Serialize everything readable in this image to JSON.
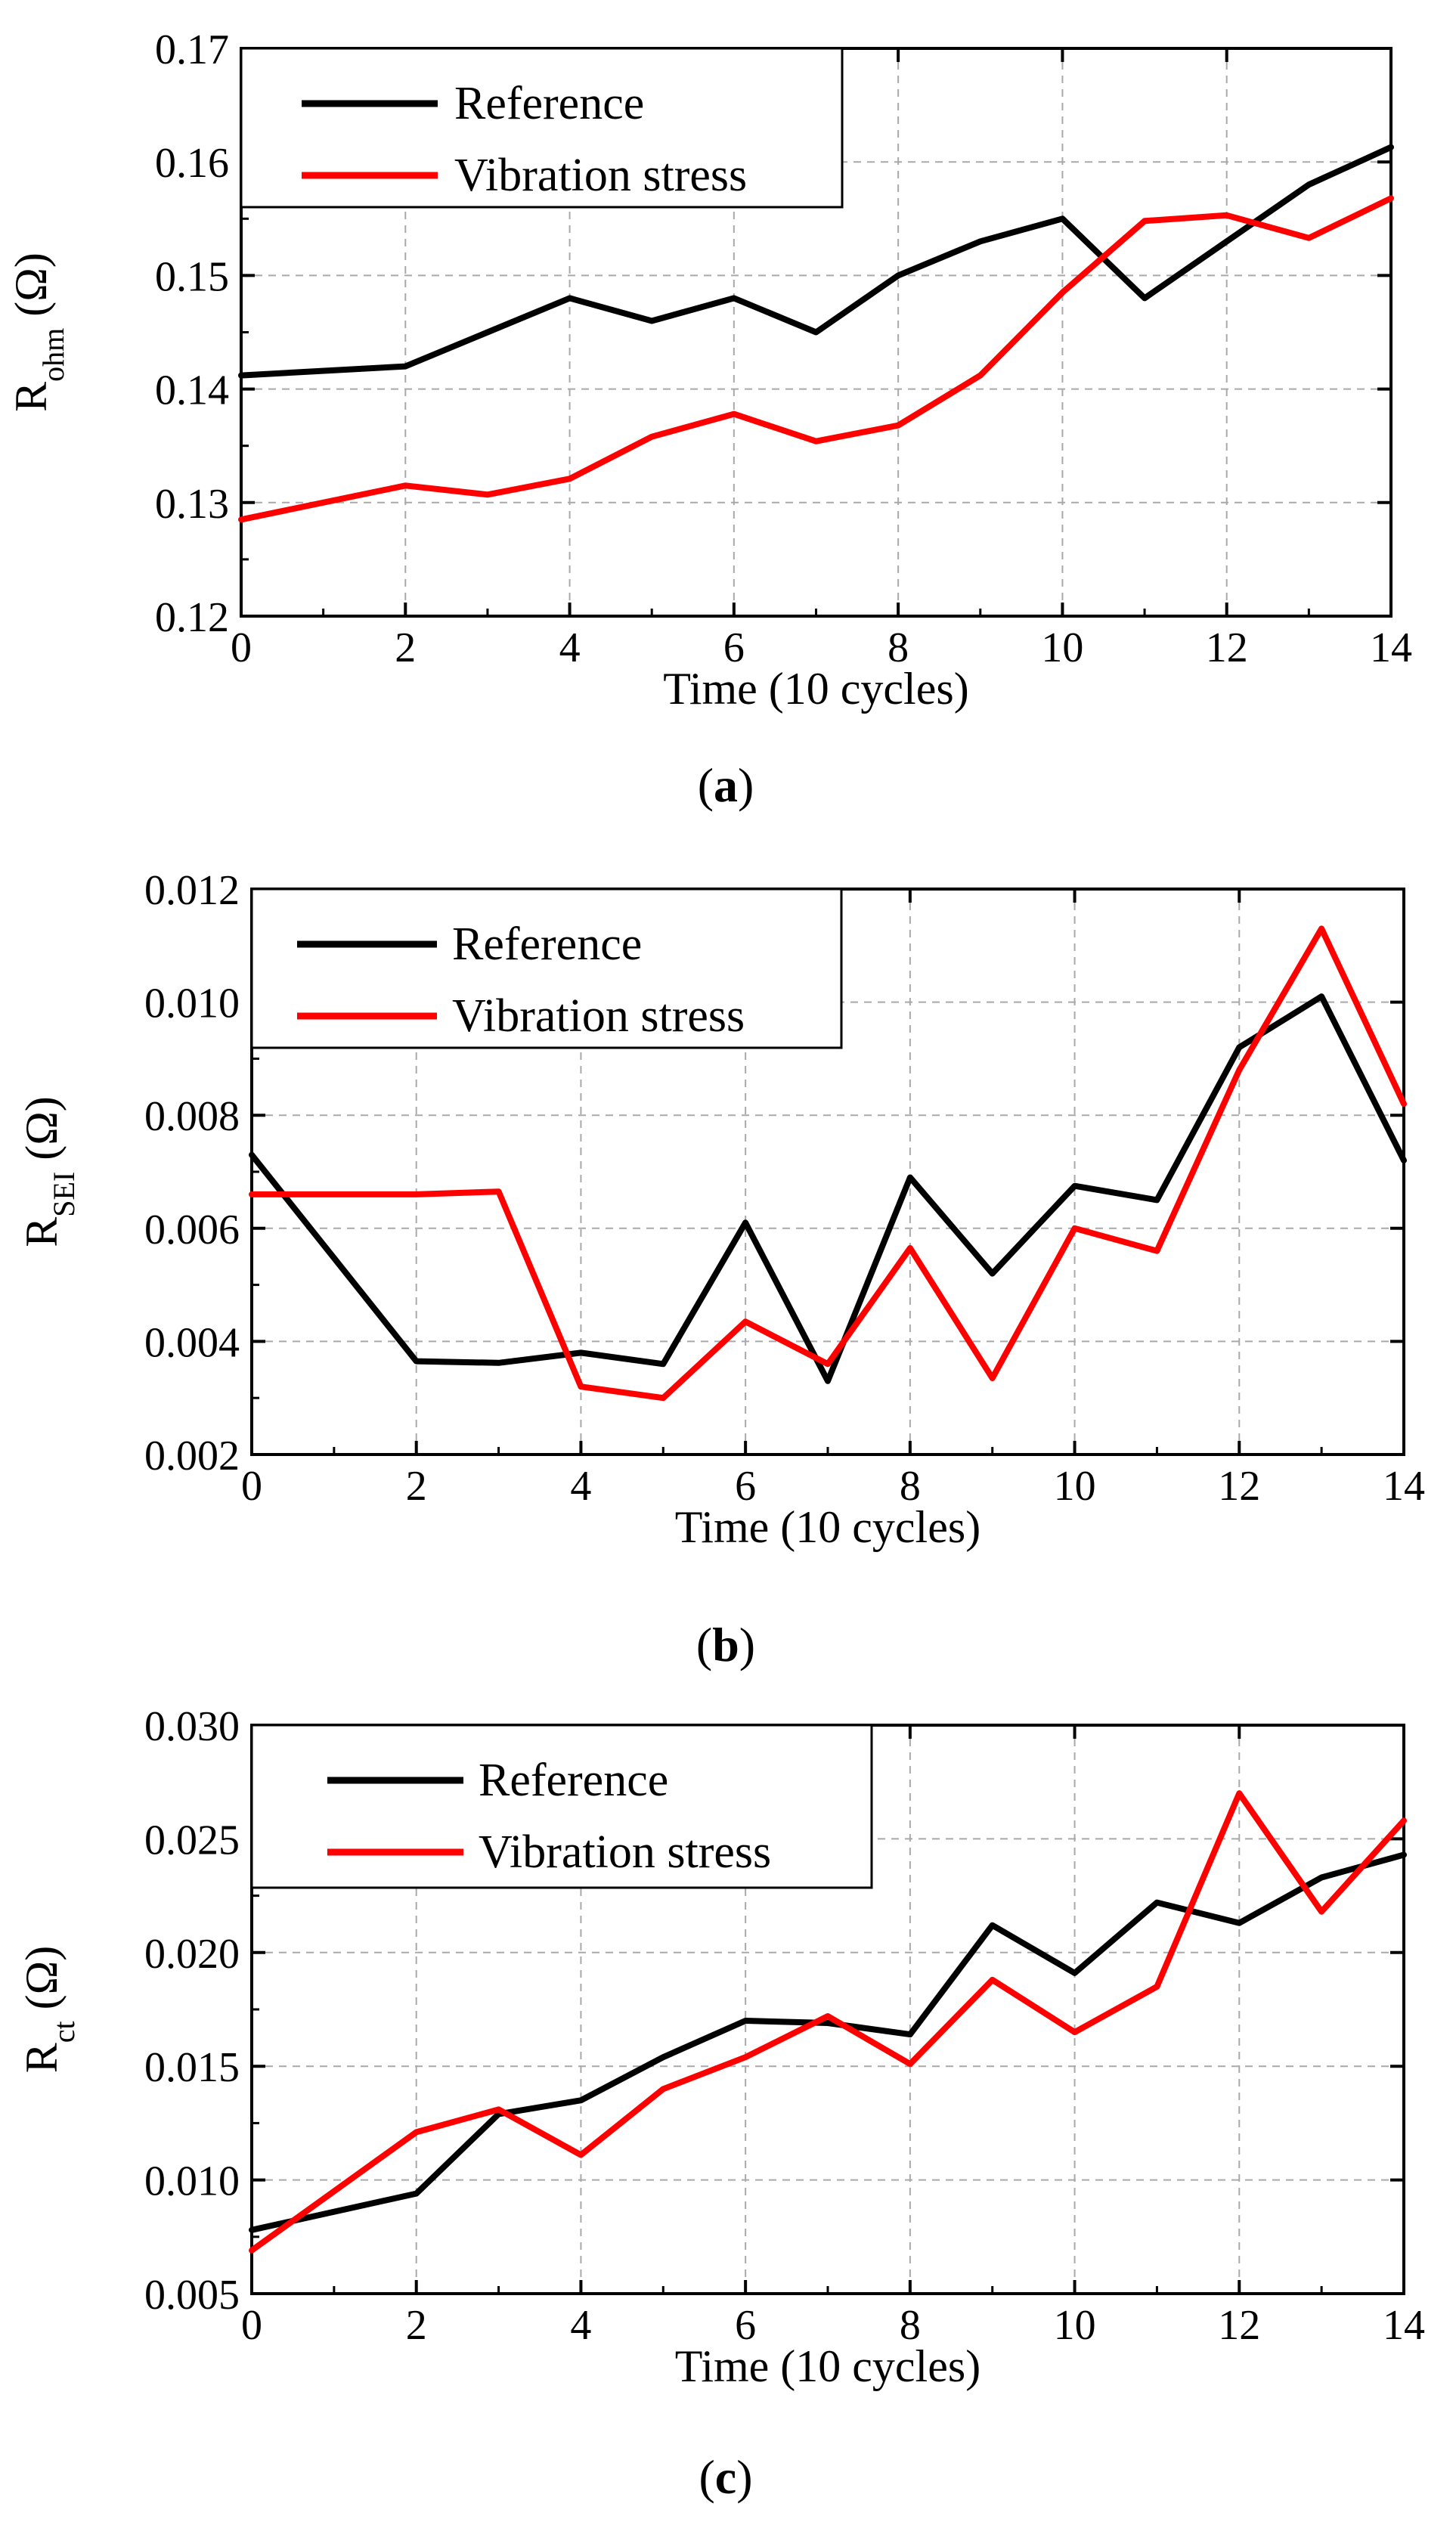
{
  "chart_data": [
    {
      "type": "line",
      "caption": {
        "open": "(",
        "letter": "a",
        "close": ")"
      },
      "title": "",
      "xlabel": "Time (10 cycles)",
      "ylabel": {
        "main": "R",
        "sub": "ohm",
        "unit": " (Ω)"
      },
      "xlim": [
        0,
        14
      ],
      "ylim": [
        0.12,
        0.17
      ],
      "x_ticks": [
        0,
        2,
        4,
        6,
        8,
        10,
        12,
        14
      ],
      "x_tick_labels": [
        "0",
        "2",
        "4",
        "6",
        "8",
        "10",
        "12",
        "14"
      ],
      "x_minor_ticks": [
        1,
        3,
        5,
        7,
        9,
        11,
        13
      ],
      "y_ticks": [
        0.12,
        0.13,
        0.14,
        0.15,
        0.16,
        0.17
      ],
      "y_tick_labels": [
        "0.12",
        "0.13",
        "0.14",
        "0.15",
        "0.16",
        "0.17"
      ],
      "grid": true,
      "legend_position": "top-left",
      "x": [
        0,
        2,
        3,
        4,
        5,
        6,
        7,
        8,
        9,
        10,
        11,
        12,
        13,
        14
      ],
      "series": [
        {
          "name": "Reference",
          "color": "#000000",
          "values": [
            0.1412,
            0.142,
            0.145,
            0.148,
            0.146,
            0.148,
            0.145,
            0.15,
            0.153,
            0.155,
            0.148,
            0.153,
            0.158,
            0.1613
          ]
        },
        {
          "name": "Vibration stress",
          "color": "#ff0000",
          "values": [
            0.1285,
            0.1315,
            0.1307,
            0.1321,
            0.1358,
            0.1378,
            0.1354,
            0.1368,
            0.1412,
            0.1485,
            0.1548,
            0.1553,
            0.1533,
            0.1568
          ]
        }
      ]
    },
    {
      "type": "line",
      "caption": {
        "open": "(",
        "letter": "b",
        "close": ")"
      },
      "title": "",
      "xlabel": "Time (10 cycles)",
      "ylabel": {
        "main": "R",
        "sub": "SEI",
        "unit": " (Ω)"
      },
      "xlim": [
        0,
        14
      ],
      "ylim": [
        0.002,
        0.012
      ],
      "x_ticks": [
        0,
        2,
        4,
        6,
        8,
        10,
        12,
        14
      ],
      "x_tick_labels": [
        "0",
        "2",
        "4",
        "6",
        "8",
        "10",
        "12",
        "14"
      ],
      "x_minor_ticks": [
        1,
        3,
        5,
        7,
        9,
        11,
        13
      ],
      "y_ticks": [
        0.002,
        0.004,
        0.006,
        0.008,
        0.01,
        0.012
      ],
      "y_tick_labels": [
        "0.002",
        "0.004",
        "0.006",
        "0.008",
        "0.010",
        "0.012"
      ],
      "grid": true,
      "legend_position": "top-left",
      "x": [
        0,
        2,
        3,
        4,
        5,
        6,
        7,
        8,
        9,
        10,
        11,
        12,
        13,
        14
      ],
      "series": [
        {
          "name": "Reference",
          "color": "#000000",
          "values": [
            0.0073,
            0.00365,
            0.00362,
            0.0038,
            0.0036,
            0.0061,
            0.0033,
            0.0069,
            0.0052,
            0.00675,
            0.0065,
            0.0092,
            0.0101,
            0.0072
          ]
        },
        {
          "name": "Vibration stress",
          "color": "#ff0000",
          "values": [
            0.0066,
            0.0066,
            0.00665,
            0.0032,
            0.003,
            0.00435,
            0.0036,
            0.00565,
            0.00335,
            0.006,
            0.0056,
            0.0088,
            0.0113,
            0.0082
          ]
        }
      ]
    },
    {
      "type": "line",
      "caption": {
        "open": "(",
        "letter": "c",
        "close": ")"
      },
      "title": "",
      "xlabel": "Time (10 cycles)",
      "ylabel": {
        "main": "R",
        "sub": "ct",
        "unit": " (Ω)"
      },
      "xlim": [
        0,
        14
      ],
      "ylim": [
        0.005,
        0.03
      ],
      "x_ticks": [
        0,
        2,
        4,
        6,
        8,
        10,
        12,
        14
      ],
      "x_tick_labels": [
        "0",
        "2",
        "4",
        "6",
        "8",
        "10",
        "12",
        "14"
      ],
      "x_minor_ticks": [
        1,
        3,
        5,
        7,
        9,
        11,
        13
      ],
      "y_ticks": [
        0.005,
        0.01,
        0.015,
        0.02,
        0.025,
        0.03
      ],
      "y_tick_labels": [
        "0.005",
        "0.010",
        "0.015",
        "0.020",
        "0.025",
        "0.030"
      ],
      "grid": true,
      "legend_position": "top-left",
      "x": [
        0,
        2,
        3,
        4,
        5,
        6,
        7,
        8,
        9,
        10,
        11,
        12,
        13,
        14
      ],
      "series": [
        {
          "name": "Reference",
          "color": "#000000",
          "values": [
            0.0078,
            0.0094,
            0.0129,
            0.0135,
            0.0154,
            0.017,
            0.0169,
            0.0164,
            0.0212,
            0.0191,
            0.0222,
            0.0213,
            0.0233,
            0.0243
          ]
        },
        {
          "name": "Vibration stress",
          "color": "#ff0000",
          "values": [
            0.0069,
            0.0121,
            0.0131,
            0.0111,
            0.014,
            0.0154,
            0.0172,
            0.0151,
            0.0188,
            0.0165,
            0.0185,
            0.027,
            0.0218,
            0.0258
          ]
        }
      ]
    }
  ]
}
